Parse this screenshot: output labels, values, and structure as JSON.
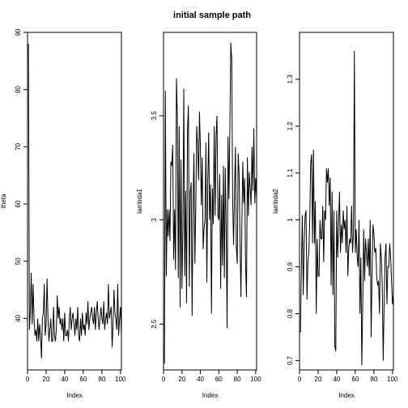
{
  "title": "initial sample path",
  "chart_data": [
    {
      "type": "line",
      "xlabel": "Index",
      "ylabel": "theta",
      "xlim": [
        0,
        101
      ],
      "ylim": [
        31,
        90
      ],
      "xticks": [
        0,
        20,
        40,
        60,
        80,
        100
      ],
      "yticks": [
        40,
        50,
        60,
        70,
        80,
        90
      ],
      "x_start": 1,
      "values": [
        88,
        38,
        41,
        48,
        39,
        46,
        40,
        37,
        38,
        36,
        40,
        36,
        39,
        37,
        33,
        40,
        41,
        46,
        37,
        39,
        47,
        40,
        36,
        38,
        40,
        36,
        36,
        42,
        37,
        36,
        38,
        44,
        40,
        42,
        39,
        40,
        38,
        40,
        36,
        41,
        37,
        37,
        38,
        36,
        40,
        42,
        38,
        40,
        41,
        39,
        37,
        40,
        38,
        42,
        37,
        36,
        40,
        37,
        41,
        38,
        39,
        37,
        41,
        39,
        43,
        38,
        40,
        41,
        42,
        40,
        39,
        42,
        38,
        41,
        43,
        40,
        38,
        40,
        42,
        40,
        39,
        43,
        38,
        40,
        41,
        39,
        46,
        40,
        41,
        42,
        35,
        39,
        45,
        41,
        40,
        38,
        46,
        37,
        40,
        42,
        37
      ]
    },
    {
      "type": "line",
      "xlabel": "Index",
      "ylabel": "lambda1",
      "xlim": [
        0,
        101
      ],
      "ylim": [
        2.28,
        3.9
      ],
      "xticks": [
        0,
        20,
        40,
        60,
        80,
        100
      ],
      "yticks": [
        2.5,
        3.0,
        3.5
      ],
      "x_start": 1,
      "values": [
        2.31,
        3.62,
        2.73,
        3.05,
        2.92,
        3.05,
        2.9,
        3.28,
        3.26,
        3.36,
        2.81,
        3.05,
        2.76,
        3.68,
        3.5,
        2.72,
        3.45,
        2.58,
        3.29,
        2.67,
        2.95,
        3.63,
        2.73,
        3.14,
        2.6,
        3.43,
        3.55,
        2.68,
        3.13,
        3.18,
        2.54,
        3.05,
        3.32,
        2.79,
        3.06,
        3.45,
        3.36,
        3.19,
        3.52,
        3.35,
        3.07,
        3.3,
        2.86,
        2.96,
        3.0,
        3.37,
        2.7,
        3.18,
        3.42,
        3.0,
        3.17,
        2.55,
        3.15,
        2.98,
        3.45,
        3.02,
        3.4,
        3.5,
        3.02,
        3.0,
        3.22,
        2.67,
        3.12,
        2.78,
        3.26,
        2.72,
        3.25,
        2.96,
        2.48,
        3.4,
        3.1,
        3.45,
        3.85,
        3.77,
        3.1,
        2.88,
        3.12,
        3.35,
        2.87,
        2.79,
        3.32,
        3.22,
        2.9,
        2.63,
        2.98,
        3.28,
        3.08,
        3.2,
        2.79,
        2.63,
        3.3,
        3.02,
        3.23,
        3.15,
        3.07,
        3.35,
        3.14,
        3.44,
        3.08,
        3.2,
        3.1
      ]
    },
    {
      "type": "line",
      "xlabel": "Index",
      "ylabel": "lambda2",
      "xlim": [
        0,
        101
      ],
      "ylim": [
        0.68,
        1.4
      ],
      "xticks": [
        0,
        20,
        40,
        60,
        80,
        100
      ],
      "yticks": [
        0.7,
        0.8,
        0.9,
        1.0,
        1.1,
        1.2,
        1.3
      ],
      "x_start": 1,
      "values": [
        0.76,
        0.9,
        1.01,
        0.84,
        0.95,
        1.01,
        1.02,
        0.83,
        0.91,
        0.93,
        1.0,
        1.12,
        1.14,
        0.95,
        1.15,
        0.95,
        1.04,
        0.8,
        0.96,
        0.88,
        0.88,
        1.0,
        0.96,
        0.96,
        1.03,
        0.91,
        1.02,
        1.0,
        1.11,
        1.08,
        1.11,
        1.03,
        1.09,
        0.86,
        1.06,
        0.84,
        1.02,
        0.73,
        0.72,
        1.02,
        0.92,
        0.99,
        1.06,
        0.93,
        0.99,
        0.95,
        1.02,
        0.98,
        1.0,
        0.93,
        1.03,
        0.88,
        0.94,
        0.96,
        0.95,
        1.03,
        0.93,
        0.97,
        1.36,
        0.93,
        0.98,
        0.92,
        0.9,
        1.0,
        0.8,
        0.92,
        0.69,
        0.82,
        0.98,
        0.87,
        0.96,
        0.93,
        0.9,
        0.96,
        0.88,
        1.0,
        0.75,
        0.88,
        0.99,
        0.97,
        0.93,
        0.94,
        0.88,
        0.86,
        0.87,
        0.8,
        0.95,
        0.92,
        0.86,
        0.7,
        0.82,
        0.92,
        0.95,
        0.82,
        0.9,
        0.9,
        0.95,
        0.92,
        0.87,
        0.82,
        0.84
      ]
    }
  ]
}
